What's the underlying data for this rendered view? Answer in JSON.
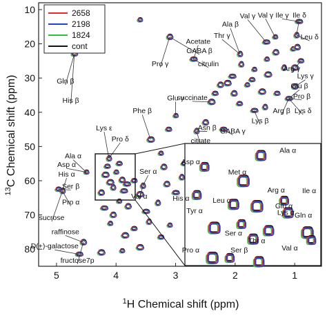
{
  "chart_data": {
    "type": "scatter",
    "title": "",
    "xlabel": "1H Chemical shift (ppm)",
    "ylabel": "13C Chemical shift (ppm)",
    "xlabel_parts": {
      "sup": "1",
      "text": "H Chemical shift (ppm)"
    },
    "ylabel_parts": {
      "sup": "13",
      "text": "C Chemical shift (ppm)"
    },
    "xlim": [
      5.3,
      0.55
    ],
    "ylim": [
      8,
      85
    ],
    "x_reversed": true,
    "y_reversed": true,
    "xticks": [
      5,
      4,
      3,
      2,
      1
    ],
    "yticks": [
      10,
      20,
      30,
      40,
      50,
      60,
      70,
      80
    ],
    "legend": {
      "placement": "top-left",
      "entries": [
        {
          "name": "2658",
          "color": "#e8272b"
        },
        {
          "name": "2198",
          "color": "#1f3fd6"
        },
        {
          "name": "1824",
          "color": "#2fbf3a"
        },
        {
          "name": "cont",
          "color": "#111111"
        }
      ]
    },
    "series": [
      {
        "name": "2658",
        "color": "#e8272b"
      },
      {
        "name": "2198",
        "color": "#1f3fd6"
      },
      {
        "name": "1824",
        "color": "#2fbf3a"
      },
      {
        "name": "cont",
        "color": "#111111"
      }
    ],
    "peaks": [
      {
        "x": 1.03,
        "y": 21.5
      },
      {
        "x": 0.96,
        "y": 21.0
      },
      {
        "x": 0.93,
        "y": 13.5
      },
      {
        "x": 0.97,
        "y": 17.5
      },
      {
        "x": 0.9,
        "y": 25.0
      },
      {
        "x": 1.0,
        "y": 27.0
      },
      {
        "x": 1.33,
        "y": 18.0
      },
      {
        "x": 1.32,
        "y": 22.5
      },
      {
        "x": 1.48,
        "y": 19.5
      },
      {
        "x": 1.9,
        "y": 26.0
      },
      {
        "x": 1.72,
        "y": 30.5
      },
      {
        "x": 1.45,
        "y": 29.0
      },
      {
        "x": 1.47,
        "y": 24.5
      },
      {
        "x": 2.25,
        "y": 32.0
      },
      {
        "x": 2.05,
        "y": 29.5
      },
      {
        "x": 1.92,
        "y": 23.0
      },
      {
        "x": 2.34,
        "y": 34.5
      },
      {
        "x": 2.13,
        "y": 31.5
      },
      {
        "x": 1.68,
        "y": 27.5
      },
      {
        "x": 1.0,
        "y": 32.5
      },
      {
        "x": 1.1,
        "y": 36.0
      },
      {
        "x": 1.18,
        "y": 27.0
      },
      {
        "x": 1.3,
        "y": 34.5
      },
      {
        "x": 1.55,
        "y": 34.0
      },
      {
        "x": 1.8,
        "y": 32.0
      },
      {
        "x": 2.02,
        "y": 34.5
      },
      {
        "x": 1.68,
        "y": 39.5
      },
      {
        "x": 1.5,
        "y": 38.5
      },
      {
        "x": 1.93,
        "y": 37.5
      },
      {
        "x": 2.4,
        "y": 37.0
      },
      {
        "x": 3.0,
        "y": 41.0
      },
      {
        "x": 2.5,
        "y": 43.0
      },
      {
        "x": 2.2,
        "y": 45.0
      },
      {
        "x": 2.65,
        "y": 45.5
      },
      {
        "x": 3.12,
        "y": 45.0
      },
      {
        "x": 3.42,
        "y": 48.0
      },
      {
        "x": 3.25,
        "y": 52.0
      },
      {
        "x": 3.2,
        "y": 56.0
      },
      {
        "x": 2.85,
        "y": 55.0
      },
      {
        "x": 3.55,
        "y": 61.5
      },
      {
        "x": 3.7,
        "y": 60.0
      },
      {
        "x": 3.6,
        "y": 64.0
      },
      {
        "x": 3.95,
        "y": 66.0
      },
      {
        "x": 3.8,
        "y": 67.5
      },
      {
        "x": 3.5,
        "y": 69.0
      },
      {
        "x": 3.45,
        "y": 72.0
      },
      {
        "x": 3.7,
        "y": 74.0
      },
      {
        "x": 3.85,
        "y": 76.0
      },
      {
        "x": 4.1,
        "y": 72.5
      },
      {
        "x": 4.05,
        "y": 70.0
      },
      {
        "x": 4.2,
        "y": 68.0
      },
      {
        "x": 3.3,
        "y": 66.5
      },
      {
        "x": 3.25,
        "y": 76.5
      },
      {
        "x": 3.6,
        "y": 79.5
      },
      {
        "x": 3.9,
        "y": 80.5
      },
      {
        "x": 4.55,
        "y": 78.0
      },
      {
        "x": 4.62,
        "y": 81.5
      },
      {
        "x": 4.9,
        "y": 63.0
      },
      {
        "x": 4.97,
        "y": 62.5
      },
      {
        "x": 4.25,
        "y": 81.0
      },
      {
        "x": 3.1,
        "y": 73.0
      },
      {
        "x": 3.15,
        "y": 61.0
      },
      {
        "x": 3.0,
        "y": 63.5
      },
      {
        "x": 2.9,
        "y": 59.0
      },
      {
        "x": 4.7,
        "y": 23.0
      },
      {
        "x": 4.35,
        "y": 18.5
      },
      {
        "x": 3.6,
        "y": 13.0
      },
      {
        "x": 3.1,
        "y": 18.0
      },
      {
        "x": 2.7,
        "y": 24.5
      },
      {
        "x": 4.12,
        "y": 53.5
      },
      {
        "x": 4.15,
        "y": 55.8
      },
      {
        "x": 4.18,
        "y": 58.3
      },
      {
        "x": 4.0,
        "y": 57.5
      },
      {
        "x": 3.9,
        "y": 59.8
      },
      {
        "x": 3.82,
        "y": 61.0
      },
      {
        "x": 4.05,
        "y": 62.0
      },
      {
        "x": 3.95,
        "y": 55.0
      },
      {
        "x": 4.1,
        "y": 60.5
      },
      {
        "x": 4.5,
        "y": 57.5
      },
      {
        "x": 4.25,
        "y": 63.5
      },
      {
        "x": 3.87,
        "y": 63.0
      }
    ],
    "inset": {
      "source_region": {
        "x": [
          3.65,
          4.35
        ],
        "y": [
          51,
          64
        ]
      },
      "peaks": [
        {
          "x": 4.25,
          "y": 53.5
        },
        {
          "x": 3.96,
          "y": 52.3
        },
        {
          "x": 4.05,
          "y": 55.0
        },
        {
          "x": 4.29,
          "y": 56.5
        },
        {
          "x": 4.1,
          "y": 57.5
        },
        {
          "x": 3.98,
          "y": 57.7
        },
        {
          "x": 3.84,
          "y": 57.1
        },
        {
          "x": 3.82,
          "y": 58.4
        },
        {
          "x": 4.2,
          "y": 60.0
        },
        {
          "x": 4.06,
          "y": 59.6
        },
        {
          "x": 3.92,
          "y": 60.3
        },
        {
          "x": 4.21,
          "y": 63.2
        },
        {
          "x": 4.12,
          "y": 63.2
        },
        {
          "x": 3.97,
          "y": 63.6
        },
        {
          "x": 3.72,
          "y": 60.5
        },
        {
          "x": 3.7,
          "y": 61.3
        },
        {
          "x": 4.0,
          "y": 61.2
        }
      ],
      "labels": [
        {
          "text": "Ala α",
          "x": 3.82,
          "y": 52.0
        },
        {
          "text": "Asp α",
          "x": 4.32,
          "y": 53.2
        },
        {
          "text": "Met α",
          "x": 4.08,
          "y": 54.3
        },
        {
          "text": "His α",
          "x": 4.37,
          "y": 57.1
        },
        {
          "text": "Leu α",
          "x": 4.16,
          "y": 57.3
        },
        {
          "text": "Arg α",
          "x": 3.88,
          "y": 56.2
        },
        {
          "text": "Ile α",
          "x": 3.71,
          "y": 56.3
        },
        {
          "text": "Glu α",
          "x": 3.84,
          "y": 57.9
        },
        {
          "text": "Lys α",
          "x": 3.83,
          "y": 58.6
        },
        {
          "text": "Gln α",
          "x": 3.74,
          "y": 58.9
        },
        {
          "text": "Tyr α",
          "x": 4.3,
          "y": 58.4
        },
        {
          "text": "Ser α",
          "x": 4.1,
          "y": 60.8
        },
        {
          "text": "Thr α",
          "x": 3.98,
          "y": 61.6
        },
        {
          "text": "Ser β",
          "x": 4.07,
          "y": 62.6
        },
        {
          "text": "Val α",
          "x": 3.81,
          "y": 62.4
        },
        {
          "text": "Pro α",
          "x": 4.32,
          "y": 62.6
        }
      ]
    },
    "annotations": [
      {
        "text": "Val γ",
        "x": 1.79,
        "y": 12.5
      },
      {
        "text": "Val γ",
        "x": 1.49,
        "y": 12.3
      },
      {
        "text": "Ile γ",
        "x": 1.21,
        "y": 12.3
      },
      {
        "text": "Ile δ",
        "x": 0.92,
        "y": 12.3
      },
      {
        "text": "Ala β",
        "x": 2.08,
        "y": 15.0
      },
      {
        "text": "Leu δ",
        "x": 0.75,
        "y": 18.7
      },
      {
        "text": "Thr γ",
        "x": 2.22,
        "y": 18.3
      },
      {
        "text": "Acetate",
        "x": 2.62,
        "y": 20.0
      },
      {
        "text": "GABA β",
        "x": 2.6,
        "y": 22.7
      },
      {
        "text": "Pro γ",
        "x": 3.26,
        "y": 26.5
      },
      {
        "text": "citrulin",
        "x": 2.45,
        "y": 26.5
      },
      {
        "text": "Arg γ",
        "x": 1.05,
        "y": 28.0
      },
      {
        "text": "Lys γ",
        "x": 0.82,
        "y": 30.1
      },
      {
        "text": "Gln β",
        "x": 4.85,
        "y": 31.6
      },
      {
        "text": "Glu β",
        "x": 0.92,
        "y": 33.0
      },
      {
        "text": "Glu γ",
        "x": 3.0,
        "y": 36.5
      },
      {
        "text": "succinate",
        "x": 2.72,
        "y": 36.4
      },
      {
        "text": "Pro β",
        "x": 0.88,
        "y": 36.0
      },
      {
        "text": "His β",
        "x": 4.76,
        "y": 37.2
      },
      {
        "text": "Arg β",
        "x": 1.22,
        "y": 40.3
      },
      {
        "text": "Lys δ",
        "x": 0.86,
        "y": 40.3
      },
      {
        "text": "Phe β",
        "x": 3.56,
        "y": 40.3
      },
      {
        "text": "Lys β",
        "x": 1.58,
        "y": 43.2
      },
      {
        "text": "Lys ε",
        "x": 4.2,
        "y": 45.3
      },
      {
        "text": "Asn β",
        "x": 2.47,
        "y": 45.2
      },
      {
        "text": "GABA γ",
        "x": 2.04,
        "y": 46.2
      },
      {
        "text": "citrate",
        "x": 2.58,
        "y": 49.0
      },
      {
        "text": "Pro δ",
        "x": 3.93,
        "y": 48.5
      },
      {
        "text": "Ala α",
        "x": 4.72,
        "y": 53.5
      },
      {
        "text": "Asp α",
        "x": 4.83,
        "y": 56.0
      },
      {
        "text": "Ser α",
        "x": 3.46,
        "y": 58.0
      },
      {
        "text": "His α",
        "x": 4.83,
        "y": 58.8
      },
      {
        "text": "Ser β",
        "x": 4.76,
        "y": 62.3
      },
      {
        "text": "Val α",
        "x": 3.61,
        "y": 65.2
      },
      {
        "text": "Pro α",
        "x": 4.76,
        "y": 67.0
      },
      {
        "text": "sucrose",
        "x": 5.08,
        "y": 71.5
      },
      {
        "text": "raffinose",
        "x": 4.85,
        "y": 75.6
      },
      {
        "text": "D(+)-galactose",
        "x": 5.03,
        "y": 79.8
      },
      {
        "text": "fructose7p",
        "x": 4.65,
        "y": 84.0
      }
    ]
  }
}
